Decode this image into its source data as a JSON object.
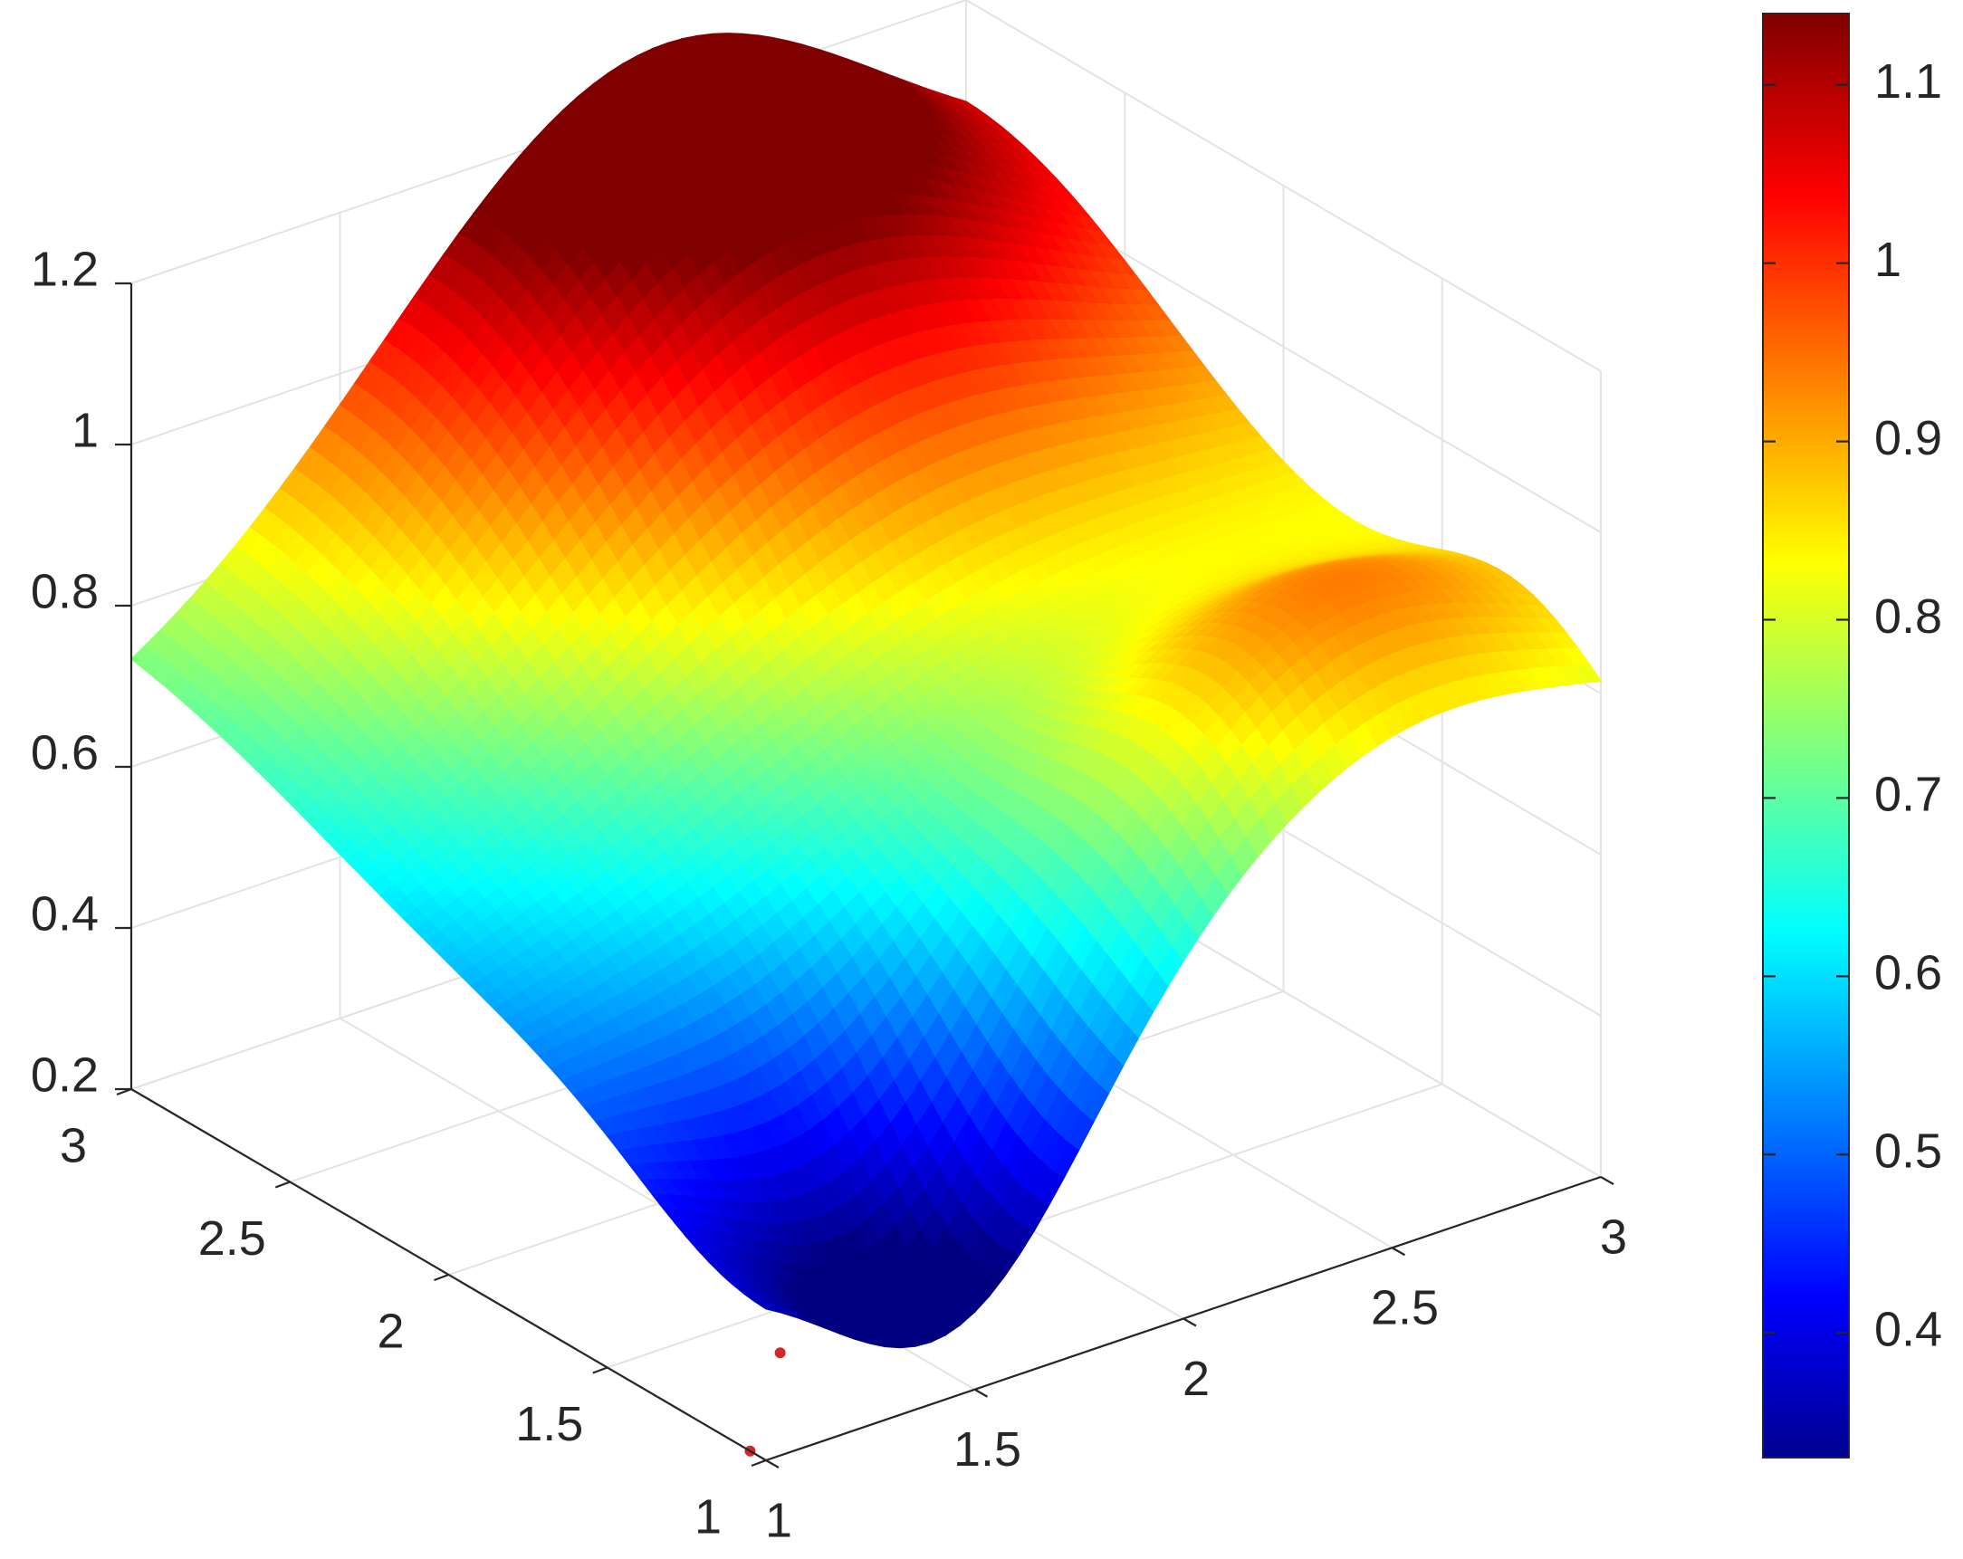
{
  "chart_data": {
    "type": "surface",
    "title": "",
    "xlabel": "",
    "ylabel": "",
    "zlabel": "",
    "x_ticks": [
      "1",
      "1.5",
      "2",
      "2.5",
      "3"
    ],
    "y_ticks": [
      "1",
      "1.5",
      "2",
      "2.5",
      "3"
    ],
    "z_ticks": [
      "0.2",
      "0.4",
      "0.6",
      "0.8",
      "1",
      "1.2"
    ],
    "x_range": [
      1,
      3
    ],
    "y_range": [
      1,
      3
    ],
    "z_range": [
      0.2,
      1.2
    ],
    "colormap": "jet",
    "colorbar": {
      "range": [
        0.33,
        1.14
      ],
      "ticks": [
        "0.4",
        "0.5",
        "0.6",
        "0.7",
        "0.8",
        "0.9",
        "1",
        "1.1"
      ],
      "placement": "right"
    },
    "grid": true,
    "surface_corners": [
      {
        "x": 1,
        "y": 1,
        "z": 0.47
      },
      {
        "x": 3,
        "y": 1,
        "z": 0.72
      },
      {
        "x": 1,
        "y": 3,
        "z": 0.67
      },
      {
        "x": 3,
        "y": 3,
        "z": 0.88
      }
    ],
    "surface_extrema": {
      "max": {
        "x": 2.2,
        "y": 2.9,
        "z": 1.14
      },
      "min": {
        "x": 1.45,
        "y": 1.1,
        "z": 0.33
      }
    },
    "markers": [
      {
        "x": 1.3,
        "y": 1.35,
        "z": 0.2,
        "color": "#d62728"
      },
      {
        "x": 1.0,
        "y": 1.05,
        "z": 0.2,
        "color": "#d62728"
      }
    ]
  }
}
